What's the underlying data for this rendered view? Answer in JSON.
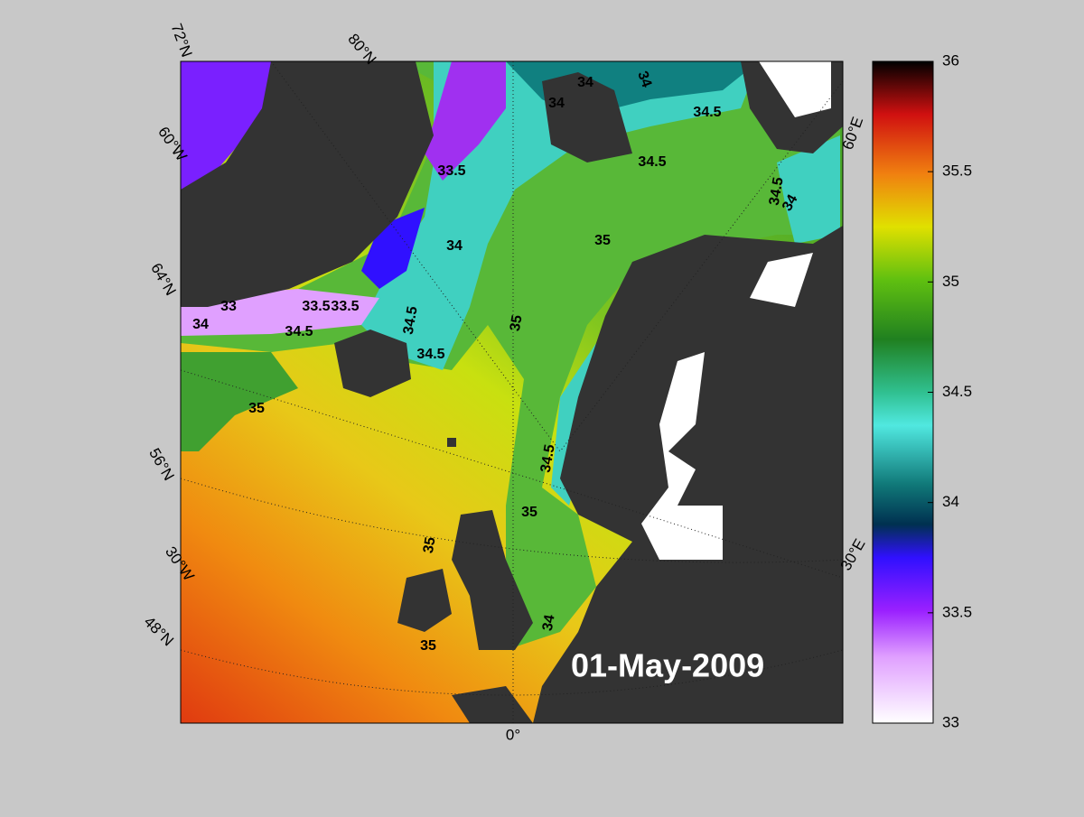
{
  "map": {
    "date": "01-May-2009",
    "graticule_labels": [
      "72°N",
      "80°N",
      "60°W",
      "64°N",
      "56°N",
      "30°W",
      "48°N",
      "0°",
      "30°E",
      "60°E"
    ],
    "contour_labels": [
      33.5,
      34,
      34,
      34,
      34.5,
      34.5,
      35,
      34,
      33,
      33.5,
      33.5,
      34,
      34.5,
      34.5,
      34.5,
      35,
      35,
      34.5,
      35,
      35,
      35,
      34,
      34.5,
      34
    ],
    "colorbar": {
      "range": [
        33,
        36
      ],
      "ticks": [
        33,
        33.5,
        34,
        34.5,
        35,
        35.5,
        36
      ]
    }
  }
}
